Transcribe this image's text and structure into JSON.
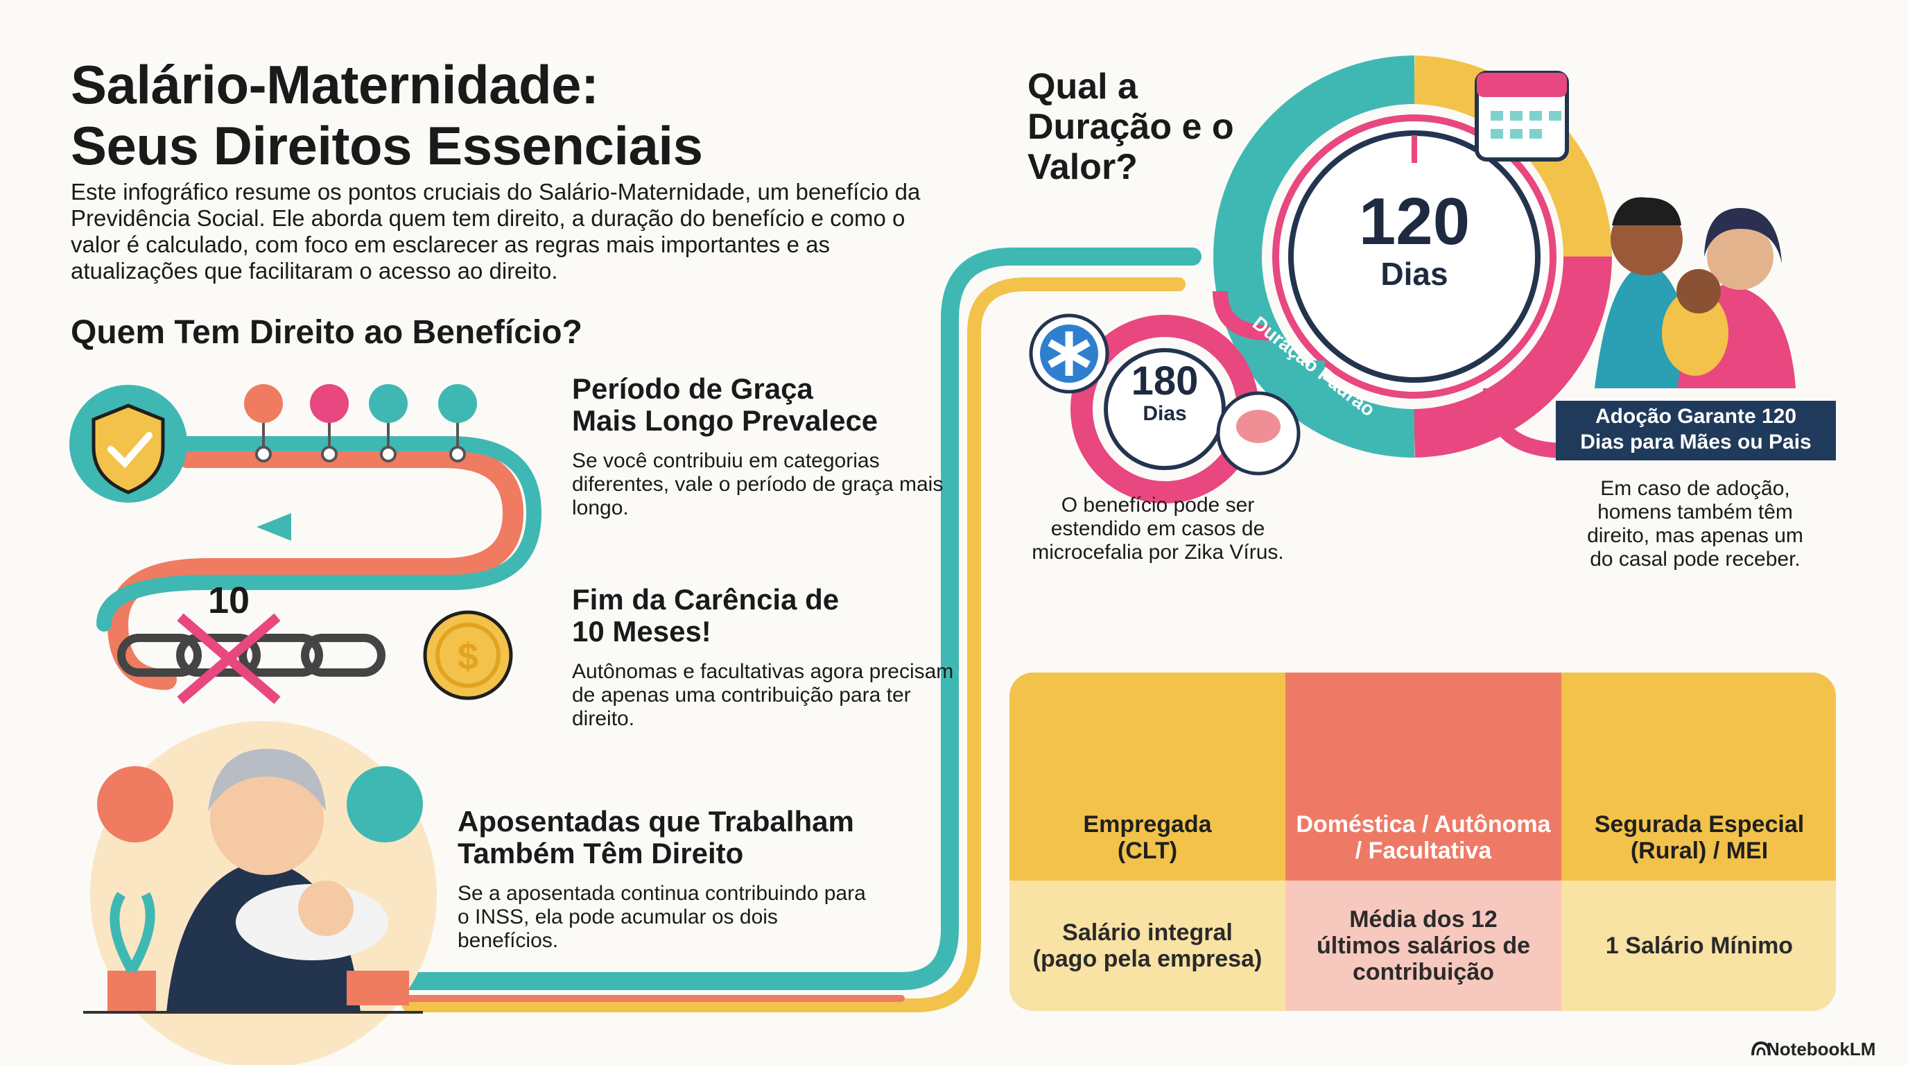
{
  "title_line1": "Salário-Maternidade:",
  "title_line2": "Seus Direitos Essenciais",
  "intro": "Este infográfico resume os pontos cruciais do Salário-Maternidade, um benefício da Previdência Social. Ele aborda quem tem direito, a duração do benefício e como o valor é calculado, com foco em esclarecer as regras mais importantes e as atualizações que facilitaram o acesso ao direito.",
  "who_section": {
    "title": "Quem Tem Direito ao Benefício?",
    "items": [
      {
        "title_line1": "Período de Graça",
        "title_line2": "Mais Longo Prevalece",
        "body": "Se você contribuiu em categorias diferentes, vale o período de graça mais longo."
      },
      {
        "title_line1": "Fim da Carência de",
        "title_line2": "10 Meses!",
        "body": "Autônomas e facultativas agora precisam de apenas uma contribuição para ter direito.",
        "icon_number": "10"
      },
      {
        "title_line1": "Aposentadas que Trabalham",
        "title_line2": "Também Têm Direito",
        "body": "Se a aposentada continua contribuindo para o INSS, ela pode acumular os dois benefícios."
      }
    ]
  },
  "duration_section": {
    "title_line1": "Qual a",
    "title_line2": "Duração e o",
    "title_line3": "Valor?",
    "main_days_number": "120",
    "main_days_unit": "Dias",
    "ring_label": "Duração Padrão",
    "extended_days_number": "180",
    "extended_days_unit": "Dias",
    "extended_note": "O benefício pode ser estendido em casos de microcefalia por Zika Vírus.",
    "adoption_banner_line1": "Adoção Garante 120",
    "adoption_banner_line2": "Dias para Mães ou Pais",
    "adoption_note": "Em caso de adoção, homens também têm direito, mas apenas um do casal pode receber."
  },
  "value_table": [
    {
      "label_line1": "Empregada",
      "label_line2": "(CLT)",
      "value_line1": "Salário integral",
      "value_line2": "(pago pela empresa)",
      "value_line3": "",
      "top_color": "#f2c24a",
      "bottom_color": "#f8e2a4",
      "label_color": "#1f1f1f"
    },
    {
      "label_line1": "Doméstica / Autônoma",
      "label_line2": "/ Facultativa",
      "value_line1": "Média dos 12",
      "value_line2": "últimos salários de",
      "value_line3": "contribuição",
      "top_color": "#ee7a66",
      "bottom_color": "#f7c8bd",
      "label_color": "#ffffff"
    },
    {
      "label_line1": "Segurada Especial",
      "label_line2": "(Rural) / MEI",
      "value_line1": "1 Salário Mínimo",
      "value_line2": "",
      "value_line3": "",
      "top_color": "#f2c24a",
      "bottom_color": "#f8e2a4",
      "label_color": "#1f1f1f"
    }
  ],
  "brand": "NotebookLM",
  "colors": {
    "teal": "#3fb8b4",
    "coral": "#ef7b61",
    "pink": "#e8477f",
    "yellow": "#f2c24a",
    "navy": "#203a5b"
  }
}
